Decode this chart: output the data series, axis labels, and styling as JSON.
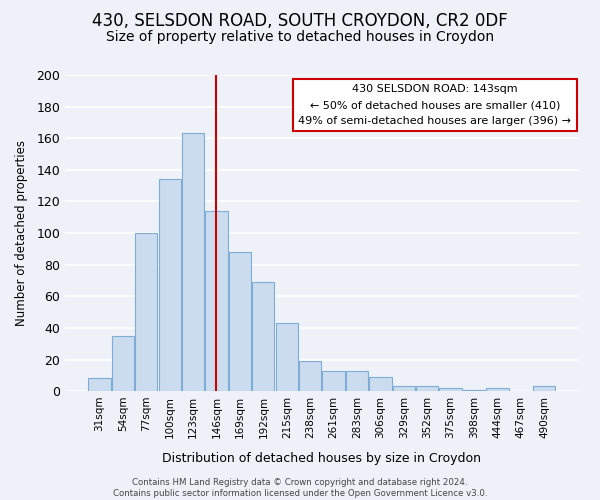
{
  "title": "430, SELSDON ROAD, SOUTH CROYDON, CR2 0DF",
  "subtitle": "Size of property relative to detached houses in Croydon",
  "xlabel": "Distribution of detached houses by size in Croydon",
  "ylabel": "Number of detached properties",
  "bar_labels": [
    "31sqm",
    "54sqm",
    "77sqm",
    "100sqm",
    "123sqm",
    "146sqm",
    "169sqm",
    "192sqm",
    "215sqm",
    "238sqm",
    "261sqm",
    "283sqm",
    "306sqm",
    "329sqm",
    "352sqm",
    "375sqm",
    "398sqm",
    "444sqm",
    "467sqm",
    "490sqm"
  ],
  "bar_heights": [
    8,
    35,
    100,
    134,
    163,
    114,
    88,
    69,
    43,
    19,
    13,
    13,
    9,
    3,
    3,
    2,
    1,
    2,
    0,
    3
  ],
  "bar_color": "#ccdcef",
  "bar_edge_color": "#7dadd4",
  "marker_line_color": "#cc0000",
  "marker_bar_index": 5,
  "ylim": [
    0,
    200
  ],
  "yticks": [
    0,
    20,
    40,
    60,
    80,
    100,
    120,
    140,
    160,
    180,
    200
  ],
  "annotation_title": "430 SELSDON ROAD: 143sqm",
  "annotation_line1": "← 50% of detached houses are smaller (410)",
  "annotation_line2": "49% of semi-detached houses are larger (396) →",
  "annotation_box_color": "#ffffff",
  "annotation_box_edge": "#cc0000",
  "footer1": "Contains HM Land Registry data © Crown copyright and database right 2024.",
  "footer2": "Contains public sector information licensed under the Open Government Licence v3.0.",
  "background_color": "#eef2f8",
  "grid_color": "#ffffff",
  "title_fontsize": 12,
  "subtitle_fontsize": 10
}
